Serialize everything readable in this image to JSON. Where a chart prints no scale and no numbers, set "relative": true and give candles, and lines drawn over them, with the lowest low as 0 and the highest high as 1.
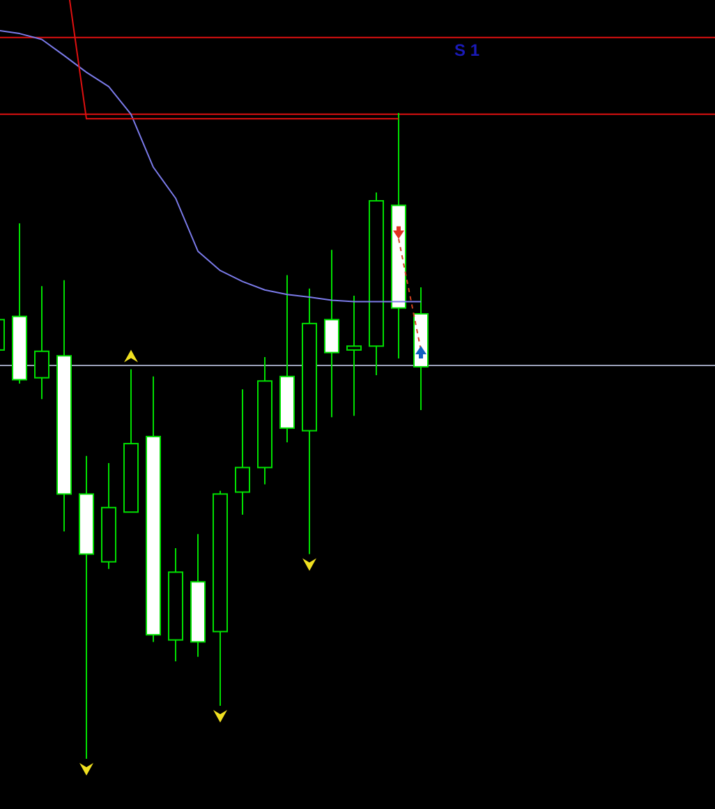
{
  "chart_data": {
    "type": "candlestick",
    "relative": true,
    "categories": [
      null,
      null,
      null,
      null,
      null,
      null,
      null,
      null,
      null,
      null,
      null,
      null,
      null,
      null,
      null,
      null,
      null,
      null,
      null,
      null
    ],
    "ohlc": [
      [
        0.633,
        0.68,
        0.633,
        0.68
      ],
      [
        0.685,
        0.829,
        0.581,
        0.587
      ],
      [
        0.59,
        0.732,
        0.557,
        0.631
      ],
      [
        0.624,
        0.741,
        0.352,
        0.41
      ],
      [
        0.41,
        0.469,
        0,
        0.317
      ],
      [
        0.305,
        0.458,
        0.294,
        0.389
      ],
      [
        0.382,
        0.603,
        0.382,
        0.488
      ],
      [
        0.499,
        0.592,
        0.181,
        0.192
      ],
      [
        0.184,
        0.326,
        0.151,
        0.289
      ],
      [
        0.274,
        0.348,
        0.158,
        0.181
      ],
      [
        0.197,
        0.415,
        0.082,
        0.41
      ],
      [
        0.413,
        0.572,
        0.378,
        0.451
      ],
      [
        0.451,
        0.622,
        0.425,
        0.585
      ],
      [
        0.592,
        0.749,
        0.49,
        0.512
      ],
      [
        0.508,
        0.728,
        0.317,
        0.674
      ],
      [
        0.68,
        0.788,
        0.529,
        0.629
      ],
      [
        0.633,
        0.717,
        0.531,
        0.639
      ],
      [
        0.639,
        0.877,
        0.594,
        0.864
      ],
      [
        0.857,
        1,
        0.62,
        0.698
      ],
      [
        0.689,
        0.73,
        0.54,
        0.607
      ]
    ],
    "color": "#00e000",
    "series": [
      {
        "type": "line",
        "color": "#7b7bea",
        "values": [
          1.128,
          1.123,
          1.114,
          1.089,
          1.063,
          1.041,
          0.998,
          0.916,
          0.868,
          0.786,
          0.756,
          0.739,
          0.726,
          0.719,
          0.715,
          0.71,
          0.708,
          0.708,
          0.708,
          0.708
        ]
      },
      {
        "type": "line",
        "color": "#e01010",
        "values": [
          null,
          null,
          null,
          1.236,
          0.991,
          0.991,
          0.991,
          0.991,
          0.991,
          0.991,
          0.991,
          0.991,
          0.991,
          0.991,
          0.991,
          0.991,
          0.991,
          0.991,
          0.991,
          null
        ]
      }
    ],
    "ref_lines": [
      {
        "axis": "y",
        "value": 1.117,
        "color": "#e01010"
      },
      {
        "axis": "y",
        "value": 0.998,
        "color": "#e01010"
      },
      {
        "axis": "y",
        "value": 0.609,
        "color": "#9aa0b8"
      }
    ],
    "annotations": [
      {
        "text": "S 1",
        "y": 1.117
      }
    ]
  }
}
